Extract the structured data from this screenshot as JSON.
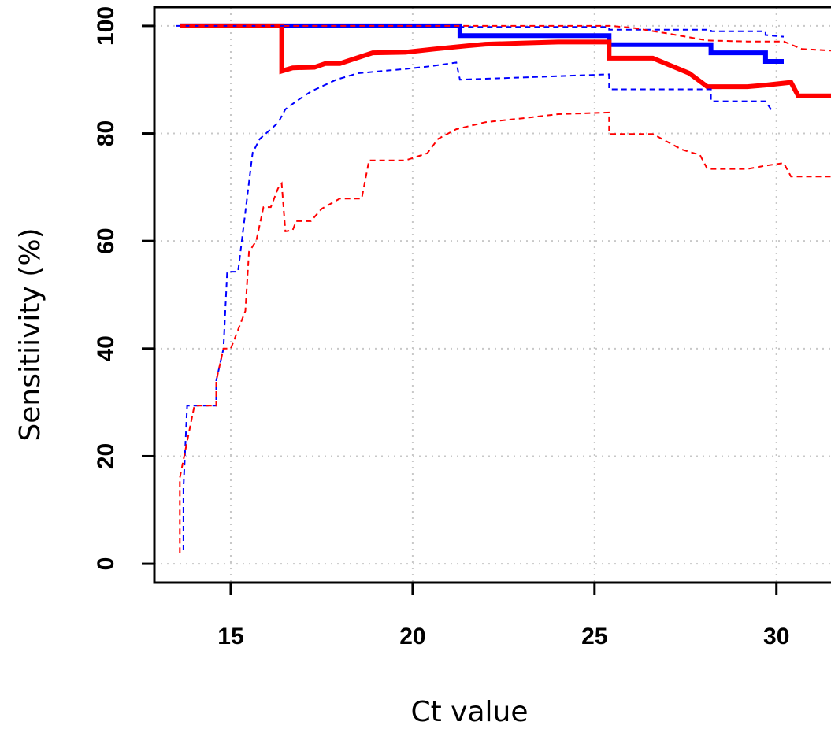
{
  "chart_data": {
    "type": "line",
    "title": "",
    "xlabel": "Ct value",
    "ylabel": "Sensitiivity (%)",
    "xlim": [
      12.9,
      31.5
    ],
    "ylim": [
      -3.5,
      103.5
    ],
    "x_ticks": [
      15,
      20,
      25,
      30
    ],
    "y_ticks": [
      0,
      20,
      40,
      60,
      80,
      100
    ],
    "grid": true,
    "legend": "none",
    "colors": {
      "blue": "#0000ff",
      "red": "#ff0000",
      "grid": "#c8c8c8",
      "axis": "#000000"
    },
    "series": [
      {
        "color": "#0000ff",
        "style": "solid",
        "points": [
          [
            13.6,
            100
          ],
          [
            21.3,
            100
          ],
          [
            21.3,
            98.2
          ],
          [
            25.4,
            98.2
          ],
          [
            25.4,
            96.5
          ],
          [
            28.2,
            96.5
          ],
          [
            28.2,
            95
          ],
          [
            29.7,
            95
          ],
          [
            29.7,
            93.4
          ],
          [
            30.2,
            93.4
          ]
        ]
      },
      {
        "color": "#ff0000",
        "style": "solid",
        "points": [
          [
            13.6,
            100
          ],
          [
            16.4,
            100
          ],
          [
            16.4,
            91.6
          ],
          [
            16.7,
            92.2
          ],
          [
            17.3,
            92.3
          ],
          [
            17.6,
            93
          ],
          [
            18,
            93
          ],
          [
            18.4,
            93.9
          ],
          [
            18.9,
            95
          ],
          [
            19.8,
            95.1
          ],
          [
            20.6,
            95.7
          ],
          [
            21.5,
            96.3
          ],
          [
            22,
            96.6
          ],
          [
            23,
            96.8
          ],
          [
            24,
            97
          ],
          [
            25.4,
            97
          ],
          [
            25.4,
            94
          ],
          [
            26.6,
            94
          ],
          [
            27.6,
            91.2
          ],
          [
            28.1,
            88.7
          ],
          [
            29.2,
            88.7
          ],
          [
            29.7,
            89
          ],
          [
            30.4,
            89.5
          ],
          [
            30.6,
            87
          ],
          [
            31.5,
            87
          ]
        ]
      },
      {
        "color": "#0000ff",
        "style": "dashed",
        "points": [
          [
            13.5,
            100
          ],
          [
            21.3,
            100
          ],
          [
            21.3,
            99.8
          ],
          [
            25.4,
            99.8
          ],
          [
            25.4,
            99.3
          ],
          [
            28.2,
            99.3
          ],
          [
            28.2,
            99
          ],
          [
            29.7,
            99
          ],
          [
            29.7,
            98.3
          ],
          [
            30.2,
            98
          ]
        ]
      },
      {
        "color": "#ff0000",
        "style": "dashed",
        "points": [
          [
            13.6,
            100
          ],
          [
            25.4,
            100
          ],
          [
            26,
            99.7
          ],
          [
            27,
            98.6
          ],
          [
            28.1,
            97.3
          ],
          [
            29.2,
            97.1
          ],
          [
            30.2,
            97.1
          ],
          [
            30.7,
            95.7
          ],
          [
            31.5,
            95.4
          ]
        ]
      },
      {
        "color": "#0000ff",
        "style": "dashed",
        "points": [
          [
            13.7,
            2.5
          ],
          [
            13.7,
            14
          ],
          [
            13.8,
            29.4
          ],
          [
            14.6,
            29.4
          ],
          [
            14.6,
            34
          ],
          [
            14.8,
            40
          ],
          [
            14.9,
            54.3
          ],
          [
            15.2,
            54.3
          ],
          [
            15.6,
            76.4
          ],
          [
            15.8,
            79
          ],
          [
            16.3,
            82
          ],
          [
            16.5,
            84.5
          ],
          [
            16.8,
            86
          ],
          [
            17.2,
            87.8
          ],
          [
            17.9,
            90
          ],
          [
            18.5,
            91.2
          ],
          [
            19.8,
            92
          ],
          [
            20.5,
            92.5
          ],
          [
            21.2,
            93.2
          ],
          [
            21.3,
            90
          ],
          [
            25.4,
            91
          ],
          [
            25.4,
            88.2
          ],
          [
            28.2,
            88.2
          ],
          [
            28.2,
            86
          ],
          [
            29.7,
            86
          ],
          [
            29.9,
            84
          ]
        ]
      },
      {
        "color": "#ff0000",
        "style": "dashed",
        "points": [
          [
            13.6,
            2
          ],
          [
            13.6,
            16
          ],
          [
            14,
            29.4
          ],
          [
            14.6,
            29.4
          ],
          [
            14.6,
            34
          ],
          [
            14.8,
            40
          ],
          [
            15,
            40
          ],
          [
            15.4,
            47
          ],
          [
            15.5,
            58
          ],
          [
            15.7,
            60
          ],
          [
            15.9,
            66.3
          ],
          [
            16.1,
            66.3
          ],
          [
            16.3,
            69.8
          ],
          [
            16.4,
            70.7
          ],
          [
            16.5,
            61.8
          ],
          [
            16.7,
            62
          ],
          [
            16.8,
            63.7
          ],
          [
            17.2,
            63.7
          ],
          [
            17.5,
            66
          ],
          [
            18,
            67.9
          ],
          [
            18.6,
            67.9
          ],
          [
            18.8,
            75
          ],
          [
            19.8,
            75
          ],
          [
            20.4,
            76.3
          ],
          [
            20.7,
            79
          ],
          [
            21.2,
            80.8
          ],
          [
            22,
            82.1
          ],
          [
            23,
            82.8
          ],
          [
            24,
            83.6
          ],
          [
            25.4,
            83.9
          ],
          [
            25.4,
            79.9
          ],
          [
            26.6,
            79.9
          ],
          [
            27.4,
            77
          ],
          [
            27.9,
            76
          ],
          [
            28.1,
            73.4
          ],
          [
            29.2,
            73.4
          ],
          [
            29.7,
            74
          ],
          [
            30.2,
            74.5
          ],
          [
            30.4,
            72
          ],
          [
            31.5,
            72
          ]
        ]
      }
    ]
  }
}
